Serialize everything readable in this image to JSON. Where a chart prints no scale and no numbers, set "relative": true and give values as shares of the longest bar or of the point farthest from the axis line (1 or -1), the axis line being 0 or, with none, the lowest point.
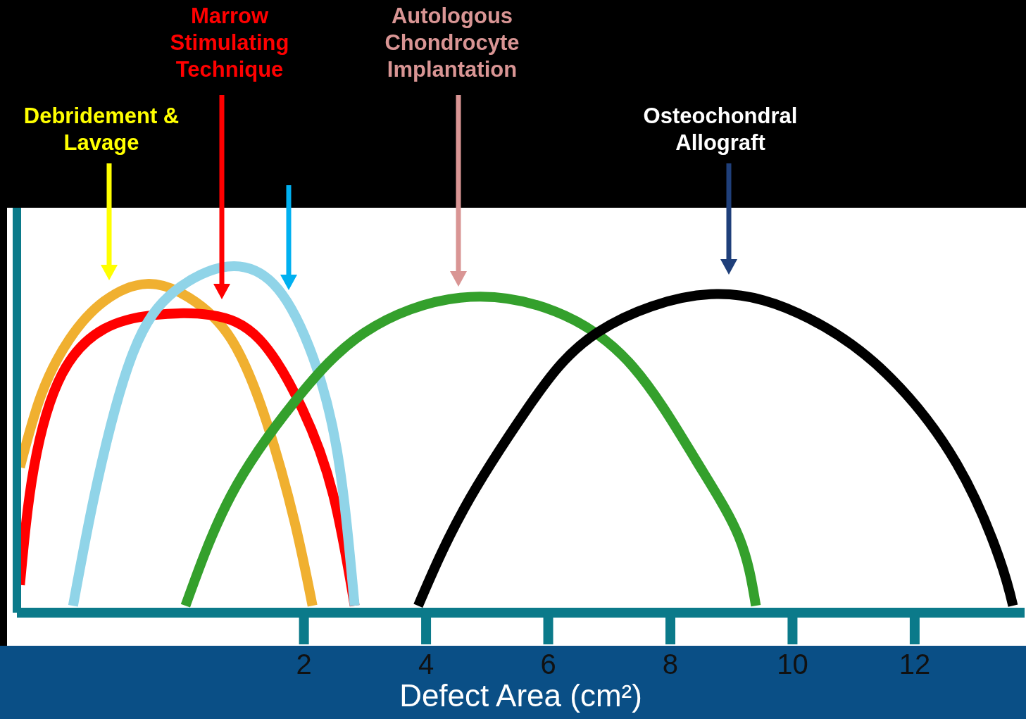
{
  "chart_data": {
    "type": "line",
    "xlabel": "Defect Area (cm²)",
    "annotations": [
      "Debridement & Lavage",
      "Marrow Stimulating Technique",
      "Autologous Chondrocyte Implantation",
      "Osteochondral Allograft"
    ],
    "relative": true,
    "xlim": [
      -2.7,
      13.8
    ],
    "xticks": [
      2,
      4,
      6,
      8,
      10,
      12
    ],
    "series": [
      {
        "color": "#f0b030",
        "x": [
          -2.65,
          -2.3,
          -1.84,
          -1.27,
          -0.57,
          0.12,
          0.81,
          1.39,
          1.85,
          2.14
        ],
        "values": [
          0.42,
          0.63,
          0.79,
          0.9,
          0.95,
          0.91,
          0.79,
          0.55,
          0.26,
          0.02
        ]
      },
      {
        "color": "#ff0000",
        "x": [
          -2.65,
          -2.42,
          -1.96,
          -1.27,
          -0.46,
          0.47,
          1.27,
          1.97,
          2.48,
          2.83
        ],
        "values": [
          0.08,
          0.42,
          0.69,
          0.82,
          0.86,
          0.86,
          0.79,
          0.59,
          0.34,
          0.02
        ]
      },
      {
        "color": "#90d4e8",
        "x": [
          -1.78,
          -1.38,
          -0.8,
          -0.11,
          0.75,
          1.5,
          2.08,
          2.54,
          2.83
        ],
        "values": [
          0.02,
          0.38,
          0.75,
          0.93,
          1.0,
          0.95,
          0.77,
          0.47,
          0.02
        ]
      },
      {
        "color": "#34a02c",
        "x": [
          0.06,
          0.81,
          1.85,
          3.0,
          4.56,
          6.12,
          7.39,
          8.42,
          9.12,
          9.4
        ],
        "values": [
          0.02,
          0.34,
          0.61,
          0.81,
          0.91,
          0.87,
          0.71,
          0.44,
          0.22,
          0.02
        ]
      },
      {
        "color": "#000000",
        "x": [
          3.87,
          4.62,
          5.66,
          6.81,
          8.66,
          10.27,
          11.54,
          12.69,
          13.38,
          13.61
        ],
        "values": [
          0.02,
          0.3,
          0.59,
          0.81,
          0.92,
          0.85,
          0.69,
          0.43,
          0.16,
          0.02
        ]
      }
    ]
  }
}
